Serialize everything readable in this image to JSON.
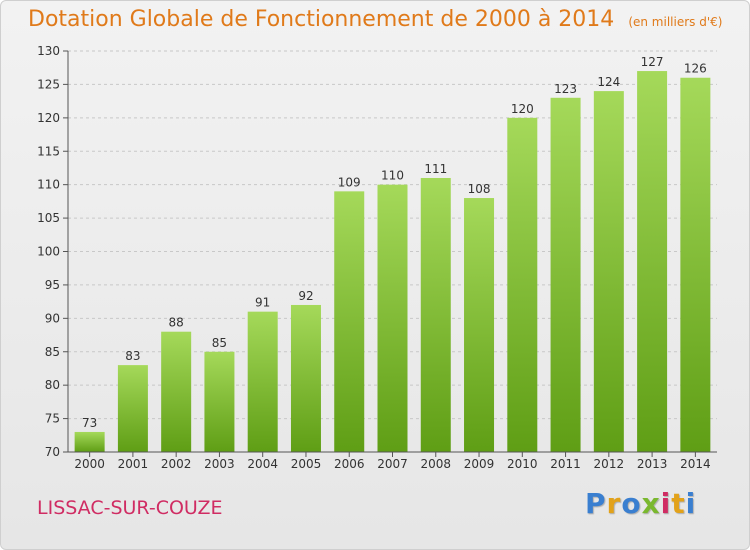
{
  "header": {
    "title": "Dotation Globale de Fonctionnement de 2000 à 2014",
    "subtitle": "(en milliers d'€)"
  },
  "footer": {
    "commune": "LISSAC-SUR-COUZE",
    "brand": {
      "letters": [
        "P",
        "r",
        "o",
        "x",
        "i",
        "t",
        "i"
      ],
      "colors": [
        "#3a7fd0",
        "#e2a21a",
        "#3a7fd0",
        "#7ab82e",
        "#d02c63",
        "#e2a21a",
        "#3a7fd0"
      ]
    }
  },
  "chart_data": {
    "type": "bar",
    "categories": [
      "2000",
      "2001",
      "2002",
      "2003",
      "2004",
      "2005",
      "2006",
      "2007",
      "2008",
      "2009",
      "2010",
      "2011",
      "2012",
      "2013",
      "2014"
    ],
    "values": [
      73,
      83,
      88,
      85,
      91,
      92,
      109,
      110,
      111,
      108,
      120,
      123,
      124,
      127,
      126
    ],
    "title": "Dotation Globale de Fonctionnement de 2000 à 2014",
    "subtitle": "(en milliers d'€)",
    "ylim": [
      70,
      130
    ],
    "yticks": [
      70,
      75,
      80,
      85,
      90,
      95,
      100,
      105,
      110,
      115,
      120,
      125,
      130
    ],
    "grid": true,
    "legend": "none",
    "bar_color": "#86c232"
  }
}
